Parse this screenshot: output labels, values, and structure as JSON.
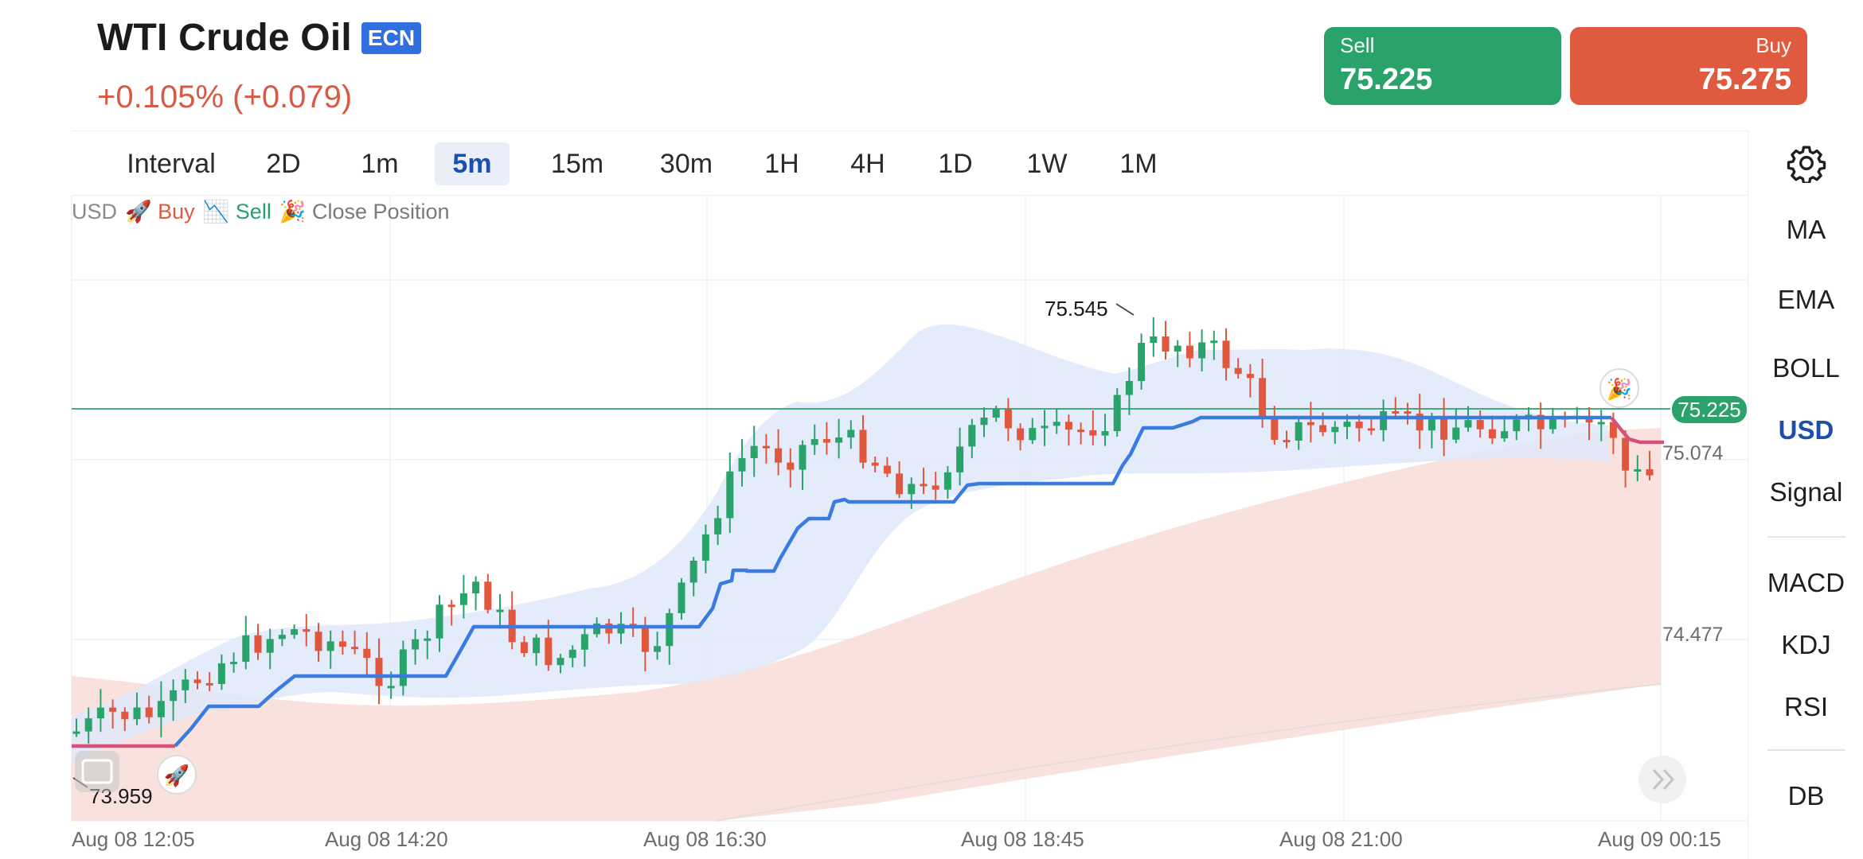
{
  "header": {
    "title": "WTI Crude Oil",
    "badge": "ECN",
    "change": "+0.105% (+0.079)"
  },
  "quote": {
    "sell_label": "Sell",
    "sell_price": "75.225",
    "buy_label": "Buy",
    "buy_price": "75.275"
  },
  "intervals": [
    "Interval",
    "2D",
    "1m",
    "5m",
    "15m",
    "30m",
    "1H",
    "4H",
    "1D",
    "1W",
    "1M"
  ],
  "active_interval": "5m",
  "side_panel": {
    "group1": [
      "MA",
      "EMA",
      "BOLL",
      "USD",
      "Signal"
    ],
    "group2": [
      "MACD",
      "KDJ",
      "RSI"
    ],
    "group3": [
      "DB"
    ],
    "active": "USD"
  },
  "legend": {
    "currency": "USD",
    "buy": "🚀 Buy",
    "sell": "📉 Sell",
    "close": "🎉 Close Position"
  },
  "chart_data": {
    "type": "candlestick",
    "x_labels": [
      "Aug 08 12:05",
      "Aug 08 14:20",
      "Aug 08 16:30",
      "Aug 08 18:45",
      "Aug 08 21:00",
      "Aug 09 00:15"
    ],
    "y_labels": [
      "75.074",
      "74.477"
    ],
    "ylim": [
      73.85,
      75.75
    ],
    "high_marker": "75.545",
    "low_marker": "73.959",
    "current_price_label": "75.225",
    "current_price": 75.225,
    "colors": {
      "up": "#2aa36b",
      "down": "#e0573d",
      "indicator_line": "#3a7be0",
      "indicator_line_end": "#d6507a",
      "cloud_blue": "#dfe8fa",
      "cloud_red": "#f8ddd7",
      "price_line": "#2aa36b"
    }
  }
}
